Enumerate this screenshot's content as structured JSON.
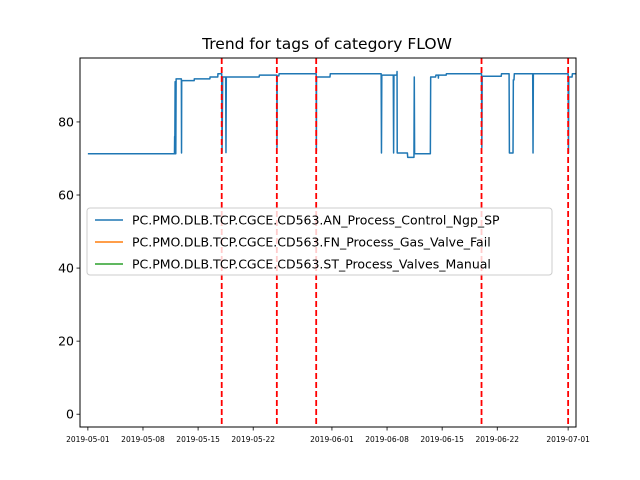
{
  "chart_data": {
    "type": "line",
    "title": "Trend for tags of category FLOW",
    "xlabel": "",
    "ylabel": "",
    "x_axis": {
      "kind": "date",
      "range": [
        "2019-04-30",
        "2019-07-02"
      ],
      "ticks": [
        "2019-05-01",
        "2019-05-08",
        "2019-05-15",
        "2019-05-22",
        "2019-06-01",
        "2019-06-08",
        "2019-06-15",
        "2019-06-22",
        "2019-07-01"
      ]
    },
    "y_axis": {
      "range": [
        -3.5,
        97.5
      ],
      "ticks": [
        0,
        20,
        40,
        60,
        80
      ]
    },
    "legend": {
      "placement": "center-left",
      "entries": [
        {
          "label": "PC.PMO.DLB.TCP.CGCE.CD563.AN_Process_Control_Ngp_SP",
          "color": "#1f77b4"
        },
        {
          "label": "PC.PMO.DLB.TCP.CGCE.CD563.FN_Process_Gas_Valve_Fail",
          "color": "#ff7f0e"
        },
        {
          "label": "PC.PMO.DLB.TCP.CGCE.CD563.ST_Process_Valves_Manual",
          "color": "#2ca02c"
        }
      ]
    },
    "vlines": {
      "color": "#ff0000",
      "style": "dashed",
      "dates": [
        "2019-05-18",
        "2019-05-25",
        "2019-05-30",
        "2019-06-20",
        "2019-07-01"
      ]
    },
    "series": [
      {
        "name": "PC.PMO.DLB.TCP.CGCE.CD563.AN_Process_Control_Ngp_SP",
        "color": "#1f77b4",
        "points": [
          [
            "2019-05-01",
            71.3
          ],
          [
            "2019-05-12 00:00",
            71.3
          ],
          [
            "2019-05-12 00:30",
            76
          ],
          [
            "2019-05-12 01:00",
            71.3
          ],
          [
            "2019-05-12 02:00",
            91
          ],
          [
            "2019-05-12 04:00",
            71.3
          ],
          [
            "2019-05-12 05:00",
            91.8
          ],
          [
            "2019-05-12 21:00",
            91.8
          ],
          [
            "2019-05-12 21:30",
            71.5
          ],
          [
            "2019-05-12 22:00",
            91.3
          ],
          [
            "2019-05-14 12:00",
            91.3
          ],
          [
            "2019-05-14 12:30",
            91.8
          ],
          [
            "2019-05-16 12:00",
            91.8
          ],
          [
            "2019-05-16 12:30",
            92.3
          ],
          [
            "2019-05-17 12:00",
            92.3
          ],
          [
            "2019-05-17 12:30",
            93.2
          ],
          [
            "2019-05-18 00:00",
            93.2
          ],
          [
            "2019-05-18 01:00",
            71.6
          ],
          [
            "2019-05-18 03:00",
            92.3
          ],
          [
            "2019-05-18 12:00",
            92.3
          ],
          [
            "2019-05-18 13:00",
            71.6
          ],
          [
            "2019-05-18 14:00",
            92.3
          ],
          [
            "2019-05-22 18:00",
            92.3
          ],
          [
            "2019-05-22 19:00",
            92.8
          ],
          [
            "2019-05-25 00:00",
            92.8
          ],
          [
            "2019-05-25 00:30",
            73
          ],
          [
            "2019-05-25 01:00",
            92.6
          ],
          [
            "2019-05-25 06:00",
            92.6
          ],
          [
            "2019-05-25 07:00",
            93.2
          ],
          [
            "2019-05-30 00:00",
            93.2
          ],
          [
            "2019-05-30 00:30",
            72
          ],
          [
            "2019-05-30 01:00",
            92.3
          ],
          [
            "2019-05-31 18:00",
            92.3
          ],
          [
            "2019-05-31 19:00",
            93.2
          ],
          [
            "2019-06-07 06:00",
            93.2
          ],
          [
            "2019-06-07 07:00",
            71.5
          ],
          [
            "2019-06-07 08:00",
            92.8
          ],
          [
            "2019-06-08 19:00",
            92.8
          ],
          [
            "2019-06-08 20:00",
            71.5
          ],
          [
            "2019-06-08 21:00",
            92.8
          ],
          [
            "2019-06-09 06:00",
            92.8
          ],
          [
            "2019-06-09 06:30",
            93.8
          ],
          [
            "2019-06-09 07:00",
            71.5
          ],
          [
            "2019-06-10 14:00",
            71.5
          ],
          [
            "2019-06-10 15:00",
            70.3
          ],
          [
            "2019-06-11 10:00",
            70.3
          ],
          [
            "2019-06-11 11:00",
            92.3
          ],
          [
            "2019-06-11 12:00",
            71.3
          ],
          [
            "2019-06-13 12:00",
            71.3
          ],
          [
            "2019-06-13 13:00",
            92.3
          ],
          [
            "2019-06-14 04:00",
            92.3
          ],
          [
            "2019-06-14 05:00",
            92.8
          ],
          [
            "2019-06-14 12:00",
            92.8
          ],
          [
            "2019-06-14 12:30",
            92
          ],
          [
            "2019-06-14 13:00",
            92.8
          ],
          [
            "2019-06-15 12:00",
            92.8
          ],
          [
            "2019-06-15 13:00",
            93.2
          ],
          [
            "2019-06-20 00:00",
            93.2
          ],
          [
            "2019-06-20 01:00",
            73
          ],
          [
            "2019-06-20 02:00",
            92.5
          ],
          [
            "2019-06-22 12:00",
            92.5
          ],
          [
            "2019-06-22 13:00",
            93.2
          ],
          [
            "2019-06-23 12:00",
            93.2
          ],
          [
            "2019-06-23 13:00",
            71.5
          ],
          [
            "2019-06-24 00:00",
            71.5
          ],
          [
            "2019-06-24 01:00",
            91.5
          ],
          [
            "2019-06-24 03:00",
            91.5
          ],
          [
            "2019-06-24 04:00",
            93.2
          ],
          [
            "2019-06-26 12:00",
            93.2
          ],
          [
            "2019-06-26 13:00",
            71.5
          ],
          [
            "2019-06-26 14:00",
            93.2
          ],
          [
            "2019-07-01 00:00",
            93.2
          ],
          [
            "2019-07-01 01:00",
            71.5
          ],
          [
            "2019-07-01 02:00",
            92.3
          ],
          [
            "2019-07-01 12:00",
            92.3
          ],
          [
            "2019-07-01 13:00",
            93.2
          ],
          [
            "2019-07-02 00:00",
            93.2
          ]
        ]
      }
    ]
  }
}
